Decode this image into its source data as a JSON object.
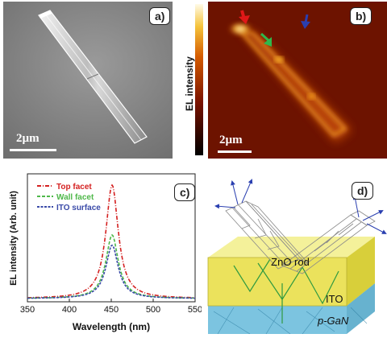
{
  "panels": {
    "a": {
      "tag": "a)",
      "scale_label": "2µm"
    },
    "b": {
      "tag": "b)",
      "scale_label": "2µm",
      "colorbar_label": "EL intensity"
    },
    "c": {
      "tag": "c)"
    },
    "d": {
      "tag": "d)",
      "labels": {
        "rod": "ZnO rod",
        "ito": "ITO",
        "pgan": "p-GaN"
      }
    }
  },
  "colors": {
    "top_facet": "#d42020",
    "wall_facet": "#4fb84a",
    "ito_surface": "#3a4aa8",
    "red_arrow": "#e01818",
    "green_arrow": "#2fb84c",
    "blue_arrow": "#2a3fb0"
  },
  "chart_data": {
    "type": "line",
    "xlabel": "Wavelength (nm)",
    "ylabel": "EL intensity (Arb. unit)",
    "xlim": [
      350,
      550
    ],
    "xticks": [
      350,
      400,
      450,
      500,
      550
    ],
    "legend_position": "top-left",
    "series": [
      {
        "name": "Top facet",
        "peak_x": 451,
        "peak_y": 1.0,
        "color": "#d42020"
      },
      {
        "name": "Wall facet",
        "peak_x": 451,
        "peak_y": 0.56,
        "color": "#4fb84a"
      },
      {
        "name": "ITO surface",
        "peak_x": 451,
        "peak_y": 0.47,
        "color": "#3a4aa8"
      }
    ]
  }
}
